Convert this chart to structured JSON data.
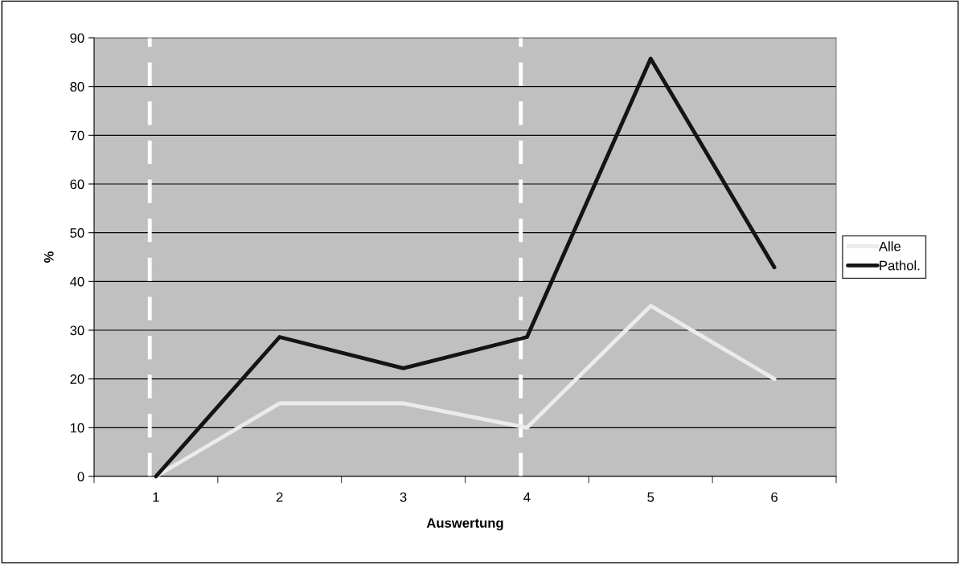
{
  "chart_data": {
    "type": "line",
    "xlabel": "Auswertung",
    "ylabel": "%",
    "categories": [
      "1",
      "2",
      "3",
      "4",
      "5",
      "6"
    ],
    "series": [
      {
        "name": "Alle",
        "color": "#ebebeb",
        "values": [
          0,
          15,
          15,
          10,
          35,
          20
        ]
      },
      {
        "name": "Pathol.",
        "color": "#141414",
        "values": [
          0,
          28.6,
          22.2,
          28.6,
          85.7,
          42.9
        ]
      }
    ],
    "ylim": [
      0,
      90
    ],
    "yticks": [
      0,
      10,
      20,
      30,
      40,
      50,
      60,
      70,
      80,
      90
    ],
    "grid": "y",
    "legend": "right",
    "marker": "none",
    "line_style": "solid",
    "ref_lines": [
      {
        "axis": "x",
        "value": "1",
        "color": "#ffffff",
        "line_style": "dashed"
      },
      {
        "axis": "x",
        "value": "4",
        "color": "#ffffff",
        "line_style": "dashed"
      }
    ]
  }
}
